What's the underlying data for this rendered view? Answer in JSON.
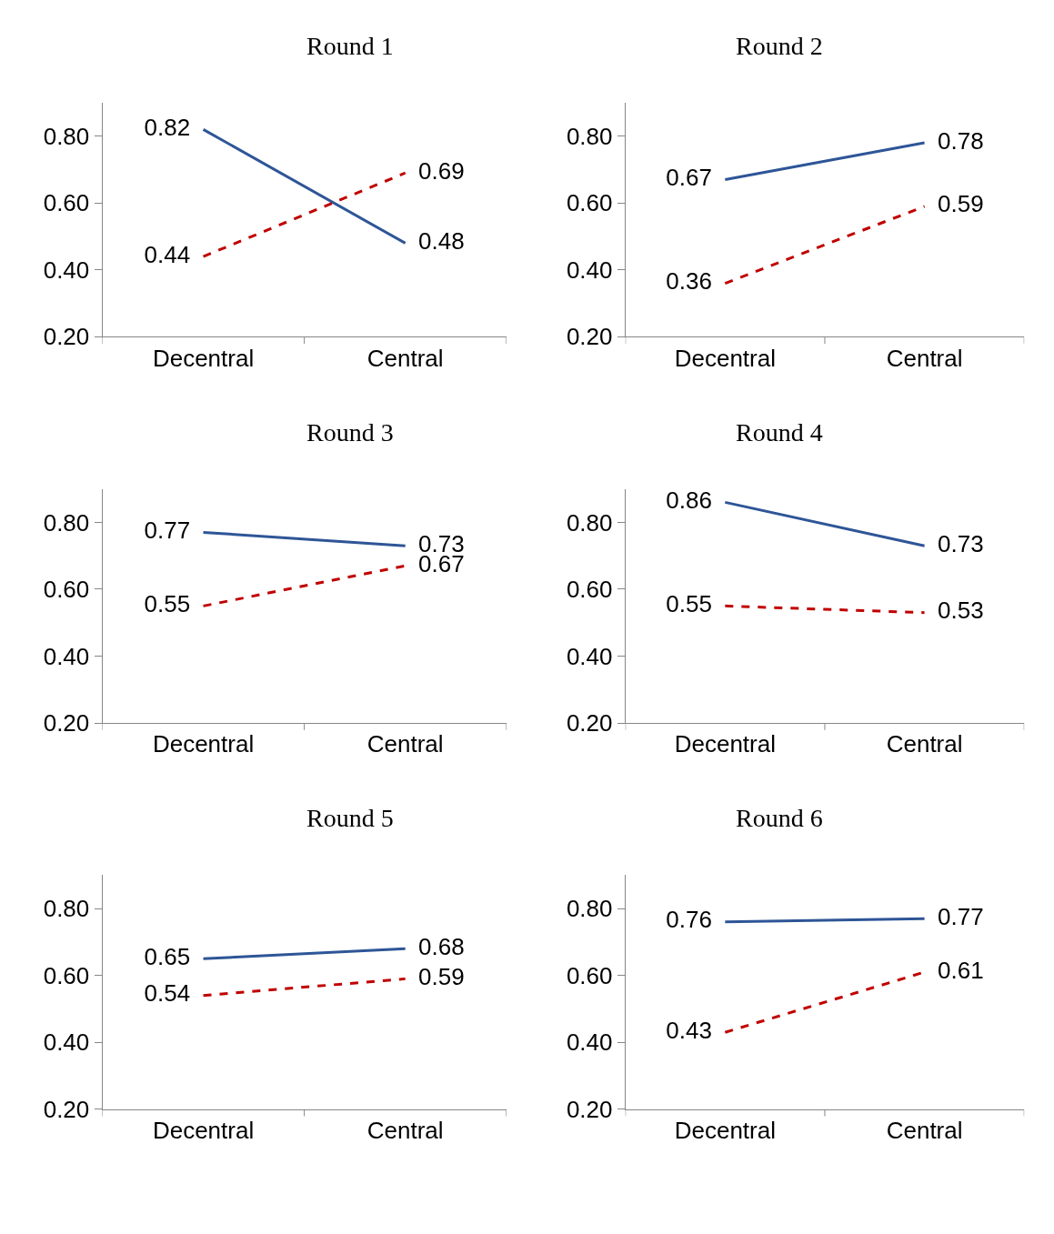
{
  "chart_data": [
    {
      "type": "line",
      "title": "Round 1",
      "categories": [
        "Decentral",
        "Central"
      ],
      "ylim": [
        0.2,
        0.9
      ],
      "yticks": [
        {
          "value": 0.2,
          "label": "0.20"
        },
        {
          "value": 0.4,
          "label": "0.40"
        },
        {
          "value": 0.6,
          "label": "0.60"
        },
        {
          "value": 0.8,
          "label": "0.80"
        }
      ],
      "grid": false,
      "marker": "none",
      "data_labels": true,
      "series": [
        {
          "color": "#2e5597",
          "line_style": "solid",
          "values": [
            0.82,
            0.48
          ]
        },
        {
          "color": "#c00000",
          "line_style": "dashed",
          "values": [
            0.44,
            0.69
          ]
        }
      ]
    },
    {
      "type": "line",
      "title": "Round 2",
      "categories": [
        "Decentral",
        "Central"
      ],
      "ylim": [
        0.2,
        0.9
      ],
      "yticks": [
        {
          "value": 0.2,
          "label": "0.20"
        },
        {
          "value": 0.4,
          "label": "0.40"
        },
        {
          "value": 0.6,
          "label": "0.60"
        },
        {
          "value": 0.8,
          "label": "0.80"
        }
      ],
      "grid": false,
      "marker": "none",
      "data_labels": true,
      "series": [
        {
          "color": "#2e5597",
          "line_style": "solid",
          "values": [
            0.67,
            0.78
          ]
        },
        {
          "color": "#c00000",
          "line_style": "dashed",
          "values": [
            0.36,
            0.59
          ]
        }
      ]
    },
    {
      "type": "line",
      "title": "Round 3",
      "categories": [
        "Decentral",
        "Central"
      ],
      "ylim": [
        0.2,
        0.9
      ],
      "yticks": [
        {
          "value": 0.2,
          "label": "0.20"
        },
        {
          "value": 0.4,
          "label": "0.40"
        },
        {
          "value": 0.6,
          "label": "0.60"
        },
        {
          "value": 0.8,
          "label": "0.80"
        }
      ],
      "grid": false,
      "marker": "none",
      "data_labels": true,
      "series": [
        {
          "color": "#2e5597",
          "line_style": "solid",
          "values": [
            0.77,
            0.73
          ]
        },
        {
          "color": "#c00000",
          "line_style": "dashed",
          "values": [
            0.55,
            0.67
          ]
        }
      ]
    },
    {
      "type": "line",
      "title": "Round 4",
      "categories": [
        "Decentral",
        "Central"
      ],
      "ylim": [
        0.2,
        0.9
      ],
      "yticks": [
        {
          "value": 0.2,
          "label": "0.20"
        },
        {
          "value": 0.4,
          "label": "0.40"
        },
        {
          "value": 0.6,
          "label": "0.60"
        },
        {
          "value": 0.8,
          "label": "0.80"
        }
      ],
      "grid": false,
      "marker": "none",
      "data_labels": true,
      "series": [
        {
          "color": "#2e5597",
          "line_style": "solid",
          "values": [
            0.86,
            0.73
          ]
        },
        {
          "color": "#c00000",
          "line_style": "dashed",
          "values": [
            0.55,
            0.53
          ]
        }
      ]
    },
    {
      "type": "line",
      "title": "Round 5",
      "categories": [
        "Decentral",
        "Central"
      ],
      "ylim": [
        0.2,
        0.9
      ],
      "yticks": [
        {
          "value": 0.2,
          "label": "0.20"
        },
        {
          "value": 0.4,
          "label": "0.40"
        },
        {
          "value": 0.6,
          "label": "0.60"
        },
        {
          "value": 0.8,
          "label": "0.80"
        }
      ],
      "grid": false,
      "marker": "none",
      "data_labels": true,
      "series": [
        {
          "color": "#2e5597",
          "line_style": "solid",
          "values": [
            0.65,
            0.68
          ]
        },
        {
          "color": "#c00000",
          "line_style": "dashed",
          "values": [
            0.54,
            0.59
          ]
        }
      ]
    },
    {
      "type": "line",
      "title": "Round 6",
      "categories": [
        "Decentral",
        "Central"
      ],
      "ylim": [
        0.2,
        0.9
      ],
      "yticks": [
        {
          "value": 0.2,
          "label": "0.20"
        },
        {
          "value": 0.4,
          "label": "0.40"
        },
        {
          "value": 0.6,
          "label": "0.60"
        },
        {
          "value": 0.8,
          "label": "0.80"
        }
      ],
      "grid": false,
      "marker": "none",
      "data_labels": true,
      "series": [
        {
          "color": "#2e5597",
          "line_style": "solid",
          "values": [
            0.76,
            0.77
          ]
        },
        {
          "color": "#c00000",
          "line_style": "dashed",
          "values": [
            0.43,
            0.61
          ]
        }
      ]
    }
  ]
}
